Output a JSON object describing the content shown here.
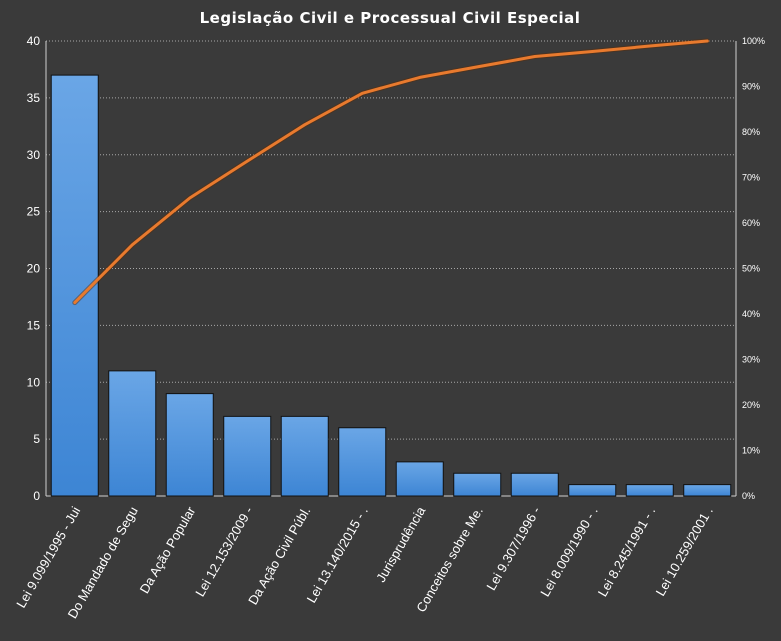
{
  "chart_data": {
    "type": "bar",
    "title": "Legislação Civil e Processual Civil Especial",
    "categories": [
      "Lei 9.099/1995 - Jui",
      "Do Mandado de Segu",
      "Da Ação Popular",
      "Lei 12.153/2009 -",
      "Da Ação Civil Públ.",
      "Lei 13.140/2015 - .",
      "Jurisprudência",
      "Conceitos sobre Me.",
      "Lei 9.307/1996 -",
      "Lei 8.009/1990 - .",
      "Lei 8.245/1991 - .",
      "Lei 10.259/2001 ."
    ],
    "series": [
      {
        "type": "bar",
        "values": [
          37,
          11,
          9,
          7,
          7,
          6,
          3,
          2,
          2,
          1,
          1,
          1
        ],
        "color": "#4a90d9"
      },
      {
        "type": "line",
        "axis": "secondary",
        "values": [
          42.5,
          55.2,
          65.5,
          73.6,
          81.6,
          88.5,
          92.0,
          94.3,
          96.6,
          97.7,
          98.9,
          100.0
        ],
        "color": "#e87a2e"
      }
    ],
    "y_ticks": [
      "0",
      "5",
      "10",
      "15",
      "20",
      "25",
      "30",
      "35",
      "40"
    ],
    "y2_ticks": [
      "0%",
      "10%",
      "20%",
      "30%",
      "40%",
      "50%",
      "60%",
      "70%",
      "80%",
      "90%",
      "100%"
    ],
    "ylim": [
      0,
      40
    ],
    "y2lim": [
      0,
      100
    ],
    "grid": "horizontal dotted",
    "legend": "none"
  }
}
